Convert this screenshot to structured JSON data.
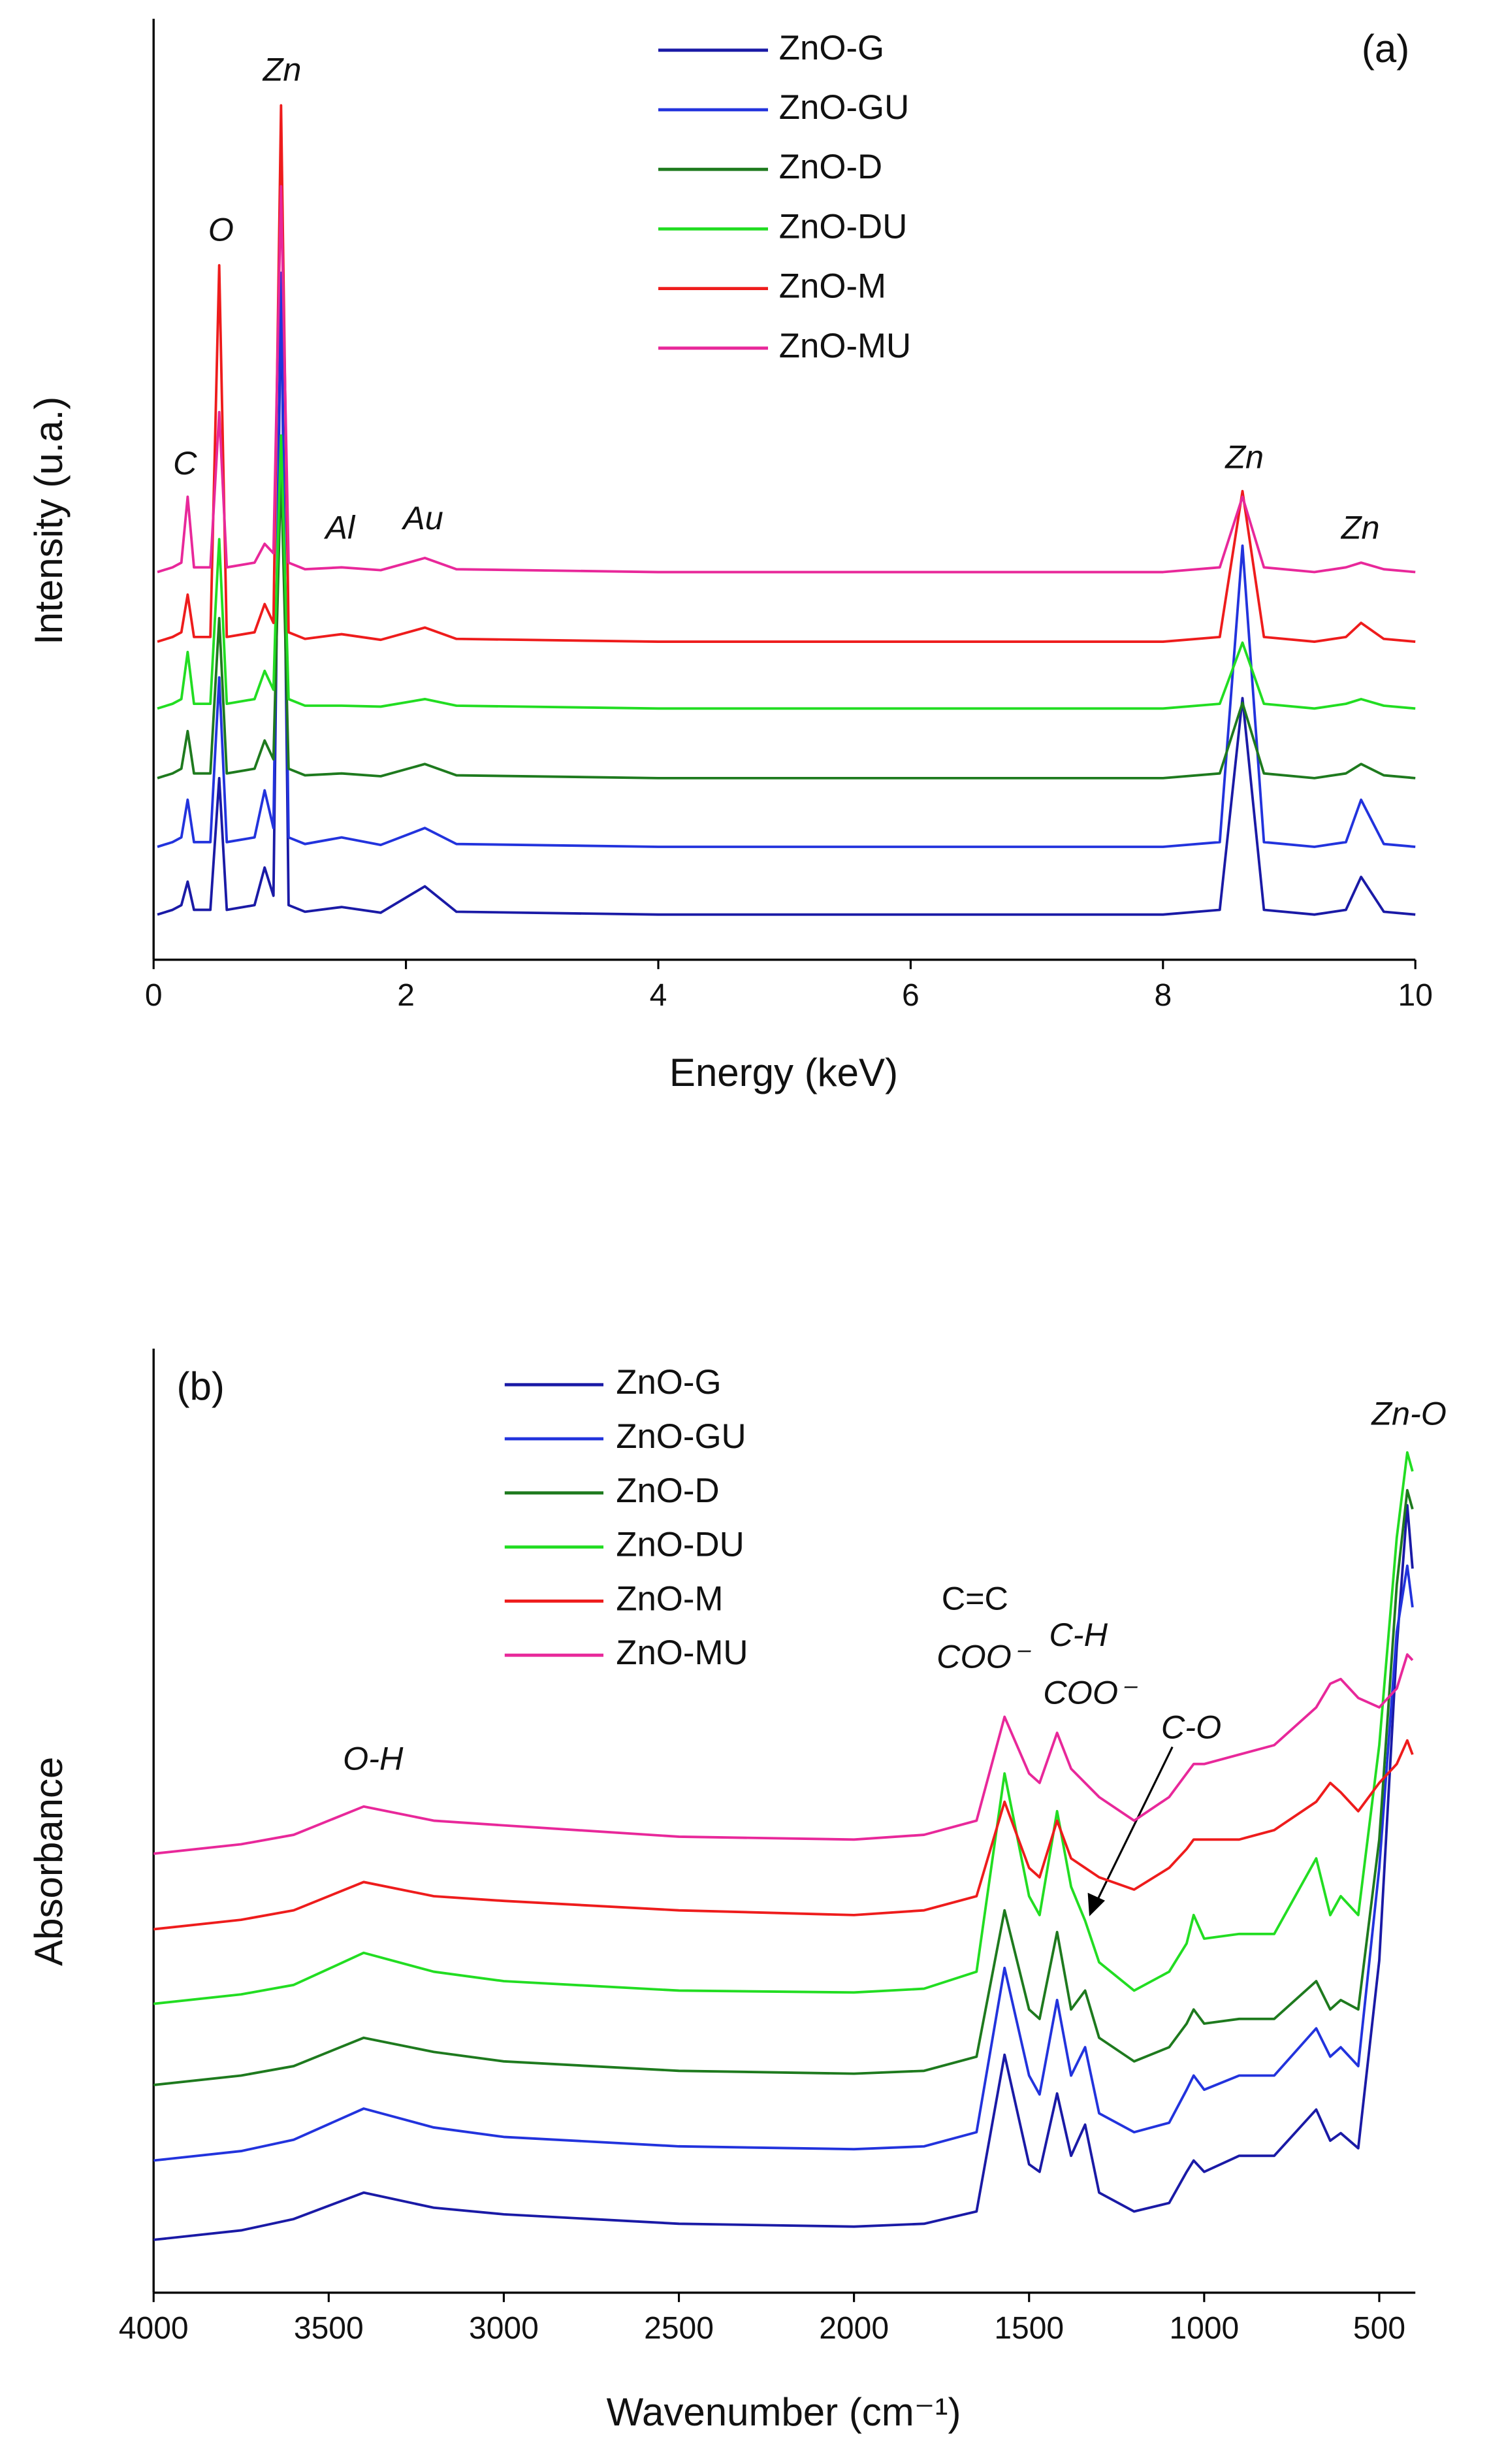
{
  "chart_data": [
    {
      "type": "line",
      "xlabel": "Energy (keV)",
      "ylabel": "Intensity (u.a.)",
      "panel_label": "(a)",
      "xlim": [
        0,
        10
      ],
      "xticks": [
        0,
        2,
        4,
        6,
        8,
        10
      ],
      "ylim": [
        0,
        100
      ],
      "legend": "upper center",
      "annotations": [
        "C",
        "O",
        "Zn",
        "Al",
        "Au",
        "Zn",
        "Zn"
      ],
      "x": [
        0.03,
        0.15,
        0.22,
        0.27,
        0.32,
        0.45,
        0.52,
        0.58,
        0.8,
        0.88,
        0.95,
        1.01,
        1.07,
        1.2,
        1.49,
        1.8,
        2.15,
        2.4,
        4,
        6,
        8,
        8.45,
        8.63,
        8.8,
        9.2,
        9.45,
        9.57,
        9.75,
        10
      ],
      "series": [
        {
          "name": "ZnO-G",
          "color": "#1a1aa6",
          "values": [
            4.8,
            5.3,
            5.8,
            8.3,
            5.3,
            5.3,
            19.3,
            5.3,
            5.8,
            9.8,
            6.8,
            72.8,
            5.8,
            5.1,
            5.6,
            5,
            7.8,
            5.1,
            4.8,
            4.8,
            4.8,
            5.3,
            27.8,
            5.3,
            4.8,
            5.3,
            8.8,
            5.1,
            4.8
          ]
        },
        {
          "name": "ZnO-GU",
          "color": "#2233dd",
          "values": [
            12,
            12.5,
            13,
            17,
            12.5,
            12.5,
            30,
            12.5,
            13,
            18,
            14,
            73,
            13,
            12.3,
            13,
            12.2,
            14,
            12.3,
            12,
            12,
            12,
            12.5,
            44,
            12.5,
            12,
            12.5,
            17,
            12.3,
            12
          ]
        },
        {
          "name": "ZnO-D",
          "color": "#1e7a1e",
          "values": [
            19.3,
            19.8,
            20.3,
            24.3,
            19.8,
            19.8,
            36.3,
            19.8,
            20.3,
            23.3,
            21.3,
            52.3,
            20.3,
            19.6,
            19.8,
            19.5,
            20.8,
            19.6,
            19.3,
            19.3,
            19.3,
            19.8,
            27.3,
            19.8,
            19.3,
            19.8,
            20.8,
            19.6,
            19.3
          ]
        },
        {
          "name": "ZnO-DU",
          "color": "#22dd22",
          "values": [
            26.7,
            27.2,
            27.7,
            32.7,
            27.2,
            27.2,
            44.7,
            27.2,
            27.7,
            30.7,
            28.7,
            55.7,
            27.7,
            27,
            27,
            26.9,
            27.7,
            27,
            26.7,
            26.7,
            26.7,
            27.2,
            33.7,
            27.2,
            26.7,
            27.2,
            27.7,
            27,
            26.7
          ]
        },
        {
          "name": "ZnO-M",
          "color": "#ee1c1c",
          "values": [
            33.8,
            34.3,
            34.8,
            38.8,
            34.3,
            34.3,
            73.8,
            34.3,
            34.8,
            37.8,
            35.8,
            90.8,
            34.8,
            34.1,
            34.6,
            34,
            35.3,
            34.1,
            33.8,
            33.8,
            33.8,
            34.3,
            49.8,
            34.3,
            33.8,
            34.3,
            35.8,
            34.1,
            33.8
          ]
        },
        {
          "name": "ZnO-MU",
          "color": "#e8289a",
          "values": [
            41.2,
            41.7,
            42.2,
            49.2,
            41.7,
            41.7,
            58.2,
            41.7,
            42.2,
            44.2,
            43.2,
            82.2,
            42.2,
            41.5,
            41.7,
            41.4,
            42.7,
            41.5,
            41.2,
            41.2,
            41.2,
            41.7,
            49.2,
            41.7,
            41.2,
            41.7,
            42.2,
            41.5,
            41.2
          ]
        }
      ]
    },
    {
      "type": "line",
      "xlabel": "Wavenumber (cm⁻¹)",
      "ylabel": "Absorbance",
      "panel_label": "(b)",
      "xlim": [
        4000,
        397
      ],
      "xticks": [
        4000,
        3500,
        3000,
        2500,
        2000,
        1500,
        1000,
        500
      ],
      "ylim": [
        0,
        100
      ],
      "legend": "upper left",
      "annotations": [
        "O-H",
        "C=C",
        "COO⁻",
        "C-H",
        "COO⁻",
        "C-O",
        "Zn-O"
      ],
      "x": [
        4000,
        3750,
        3600,
        3400,
        3200,
        3000,
        2500,
        2000,
        1800,
        1650,
        1570,
        1500,
        1470,
        1420,
        1380,
        1340,
        1300,
        1200,
        1100,
        1050,
        1030,
        1000,
        900,
        800,
        680,
        640,
        610,
        560,
        500,
        450,
        420,
        405
      ],
      "series": [
        {
          "name": "ZnO-G",
          "color": "#1a1aa6",
          "values": [
            5.6,
            6.6,
            7.8,
            10.6,
            9,
            8.3,
            7.3,
            7,
            7.3,
            8.6,
            25.2,
            13.6,
            12.8,
            21.1,
            14.5,
            17.8,
            10.6,
            8.6,
            9.5,
            12.8,
            14,
            12.8,
            14.5,
            14.5,
            19.4,
            16.1,
            16.9,
            15.3,
            35.2,
            68.4,
            83.4,
            76.7
          ]
        },
        {
          "name": "ZnO-GU",
          "color": "#2233dd",
          "values": [
            14,
            15,
            16.2,
            19.5,
            17.5,
            16.5,
            15.5,
            15.2,
            15.5,
            17,
            34.4,
            23,
            21,
            31,
            23,
            26,
            19,
            17,
            18,
            21.5,
            23,
            21.5,
            23,
            23,
            28,
            25,
            26,
            24,
            45,
            70,
            77,
            72.6
          ]
        },
        {
          "name": "ZnO-D",
          "color": "#1e7a1e",
          "values": [
            22,
            23,
            24,
            27,
            25.5,
            24.5,
            23.5,
            23.2,
            23.5,
            25,
            40.5,
            30,
            29,
            38.2,
            30,
            32,
            27,
            24.5,
            26,
            28.5,
            30,
            28.5,
            29,
            29,
            33,
            30,
            31,
            30,
            48,
            75,
            85,
            83
          ]
        },
        {
          "name": "ZnO-DU",
          "color": "#22dd22",
          "values": [
            30.6,
            31.6,
            32.6,
            36,
            34,
            33,
            32,
            31.8,
            32.2,
            34,
            55,
            42,
            40,
            51,
            43,
            39.4,
            35,
            32,
            34,
            37,
            40,
            37.5,
            38,
            38,
            46,
            40,
            42,
            40,
            58,
            80,
            89,
            87
          ]
        },
        {
          "name": "ZnO-M",
          "color": "#ee1c1c",
          "values": [
            38.5,
            39.5,
            40.5,
            43.5,
            42,
            41.5,
            40.5,
            40,
            40.5,
            42,
            52,
            45,
            44,
            50,
            46,
            45,
            44,
            42.7,
            45,
            47,
            48,
            48,
            48,
            49,
            52,
            54,
            53,
            51,
            54,
            56,
            58.5,
            57
          ]
        },
        {
          "name": "ZnO-MU",
          "color": "#e8289a",
          "values": [
            46.5,
            47.5,
            48.5,
            51.5,
            50,
            49.5,
            48.3,
            48,
            48.5,
            50,
            61,
            55,
            54,
            59.3,
            55.5,
            54,
            52.5,
            50,
            52.5,
            55,
            56,
            56,
            57,
            58,
            62,
            64.5,
            65,
            63,
            62,
            64,
            67.6,
            67
          ]
        }
      ]
    }
  ]
}
